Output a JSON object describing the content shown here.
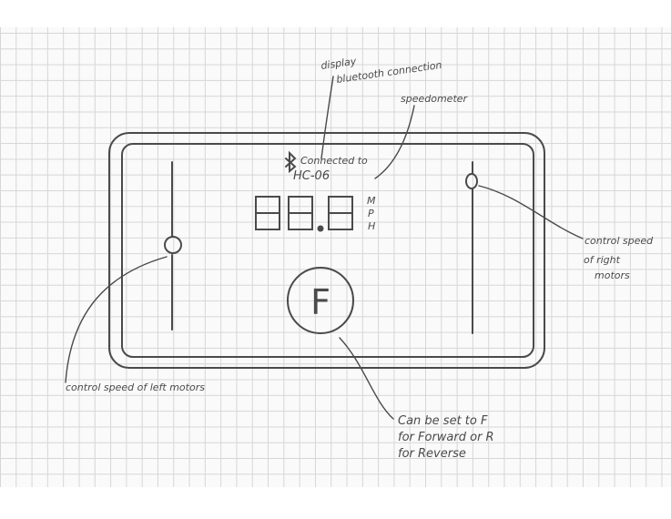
{
  "device": {
    "bluetooth_icon": "bluetooth-icon",
    "connection_line1": "Connected to",
    "connection_line2": "HC-06",
    "speed_digits": [
      "8",
      "8",
      "8"
    ],
    "unit_letters": [
      "M",
      "P",
      "H"
    ],
    "direction_button_label": "F"
  },
  "annotations": {
    "display_line1": "display",
    "display_line2": "bluetooth connection",
    "speedometer": "speedometer",
    "right_line1": "control speed",
    "right_line2": "of right",
    "right_line3": "motors",
    "left": "control speed of left motors",
    "direction_line1": "Can be set to F",
    "direction_line2": "for Forward or R",
    "direction_line3": "for Reverse"
  },
  "colors": {
    "pencil": "#4a4a4a",
    "grid": "#d6d6d6",
    "paper": "#fafafa"
  }
}
